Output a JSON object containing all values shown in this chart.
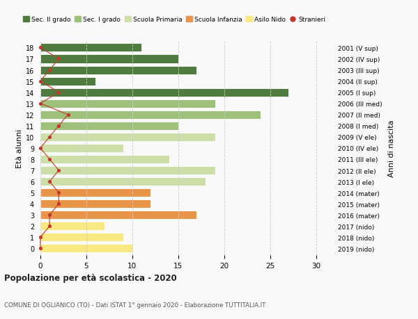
{
  "ages": [
    0,
    1,
    2,
    3,
    4,
    5,
    6,
    7,
    8,
    9,
    10,
    11,
    12,
    13,
    14,
    15,
    16,
    17,
    18
  ],
  "years": [
    "2019 (nido)",
    "2018 (nido)",
    "2017 (nido)",
    "2016 (mater)",
    "2015 (mater)",
    "2014 (mater)",
    "2013 (I ele)",
    "2012 (II ele)",
    "2011 (III ele)",
    "2010 (IV ele)",
    "2009 (V ele)",
    "2008 (I med)",
    "2007 (II med)",
    "2006 (III med)",
    "2005 (I sup)",
    "2004 (II sup)",
    "2003 (III sup)",
    "2002 (IV sup)",
    "2001 (V sup)"
  ],
  "bar_values": [
    10,
    9,
    7,
    17,
    12,
    12,
    18,
    19,
    14,
    9,
    19,
    15,
    24,
    19,
    27,
    6,
    17,
    15,
    11
  ],
  "stranieri_values": [
    0,
    0,
    1,
    1,
    2,
    2,
    1,
    2,
    1,
    0,
    1,
    2,
    3,
    0,
    2,
    0,
    1,
    2,
    0
  ],
  "bar_colors": [
    "#f7e882",
    "#f7e882",
    "#f7e882",
    "#e8954a",
    "#e8954a",
    "#e8954a",
    "#ccdfa8",
    "#ccdfa8",
    "#ccdfa8",
    "#ccdfa8",
    "#ccdfa8",
    "#9ec07a",
    "#9ec07a",
    "#9ec07a",
    "#4f7c3e",
    "#4f7c3e",
    "#4f7c3e",
    "#4f7c3e",
    "#4f7c3e"
  ],
  "legend_labels": [
    "Sec. II grado",
    "Sec. I grado",
    "Scuola Primaria",
    "Scuola Infanzia",
    "Asilo Nido",
    "Stranieri"
  ],
  "legend_colors": [
    "#4f7c3e",
    "#9ec07a",
    "#ccdfa8",
    "#e8954a",
    "#f7e882",
    "#c0392b"
  ],
  "stranieri_color": "#c0392b",
  "title": "Popolazione per età scolastica - 2020",
  "subtitle": "COMUNE DI OGLIANICO (TO) - Dati ISTAT 1° gennaio 2020 - Elaborazione TUTTITALIA.IT",
  "ylabel_left": "Età alunni",
  "ylabel_right": "Anni di nascita",
  "xlim_min": -0.3,
  "xlim_max": 32,
  "xticks": [
    0,
    5,
    10,
    15,
    20,
    25,
    30
  ],
  "ylim_min": -0.6,
  "ylim_max": 18.6,
  "grid_color": "#cccccc",
  "bg_color": "#f9f9f9",
  "bar_height": 0.75
}
